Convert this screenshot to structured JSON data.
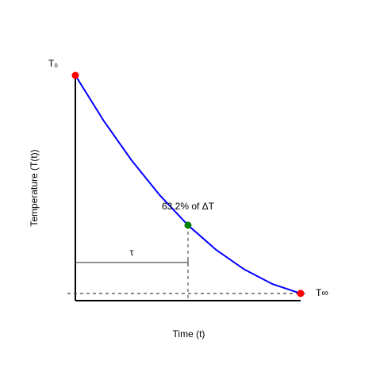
{
  "chart_data": {
    "type": "line",
    "xlabel": "Time (t)",
    "ylabel": "Temperature (T(t))",
    "xlim": [
      0,
      2
    ],
    "ylim": [
      -0.033,
      1
    ],
    "x": [
      0,
      0.25,
      0.5,
      0.75,
      1,
      1.25,
      1.5,
      1.75,
      2
    ],
    "series": [
      {
        "color": "#0000ff",
        "values": [
          1,
          0.793,
          0.61,
          0.45,
          0.313,
          0.2,
          0.11,
          0.043,
          0
        ]
      }
    ],
    "points": [
      {
        "x": 0,
        "y": 1,
        "color": "#ff0000",
        "label": "T₀"
      },
      {
        "x": 1,
        "y": 0.313,
        "color": "#008000",
        "label": "63.2% of ΔT"
      },
      {
        "x": 2,
        "y": 0,
        "color": "#ff0000",
        "label": "T∞"
      }
    ],
    "asymptote": 0,
    "tau": {
      "label": "τ",
      "x": [
        0,
        1
      ],
      "y": 0.142
    },
    "grid": false
  }
}
